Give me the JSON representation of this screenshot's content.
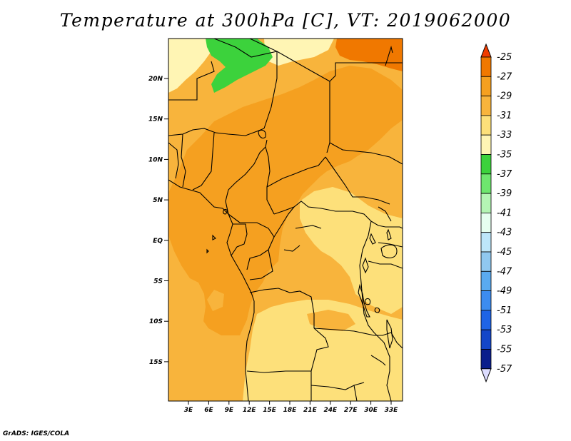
{
  "title": "Temperature at 300hPa [C], VT: 2019062000",
  "credit": "GrADS: IGES/COLA",
  "map": {
    "type": "filled-contour",
    "variable": "Temperature",
    "level": "300hPa",
    "units": "C",
    "valid_time": "2019062000",
    "lat_labels": [
      "20N",
      "15N",
      "10N",
      "5N",
      "EQ",
      "5S",
      "10S",
      "15S"
    ],
    "lon_labels": [
      "3E",
      "6E",
      "9E",
      "12E",
      "15E",
      "18E",
      "21E",
      "24E",
      "27E",
      "30E",
      "33E"
    ],
    "colors": {
      "c_m27": "#f07800",
      "c_m29": "#f5a020",
      "c_m31": "#f8b43c",
      "c_m33": "#fde07a",
      "c_m35": "#fff5b4",
      "c_m37": "#3cd23c",
      "border": "#000000"
    }
  },
  "colorbar": {
    "labels": [
      "-25",
      "-27",
      "-29",
      "-31",
      "-33",
      "-35",
      "-37",
      "-39",
      "-41",
      "-43",
      "-45",
      "-47",
      "-49",
      "-51",
      "-53",
      "-55",
      "-57"
    ],
    "colors": [
      "#f03c00",
      "#f07800",
      "#f5a020",
      "#f8b43c",
      "#fde07a",
      "#fff5b4",
      "#3cd23c",
      "#6ee66e",
      "#b4f5b4",
      "#e6fff0",
      "#bde6fa",
      "#90c8f0",
      "#5aaaf0",
      "#3c8cf0",
      "#1e64e6",
      "#1446c8",
      "#0a1e8c",
      "#dcdcff"
    ]
  }
}
